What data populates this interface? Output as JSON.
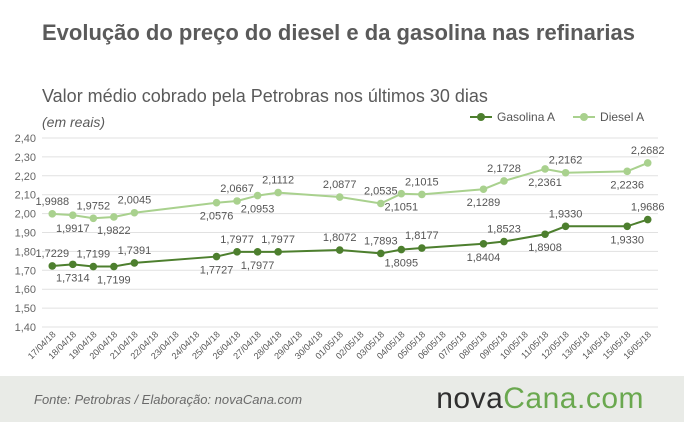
{
  "title": "Evolução do preço do diesel e da gasolina nas refinarias",
  "subtitle": "Valor médio cobrado pela Petrobras nos últimos 30 dias",
  "unit_note": "(em reais)",
  "footer": {
    "source": "Fonte:  Petrobras  / Elaboração:  novaCana.com",
    "brand_part1": "nova",
    "brand_part2": "Cana.com"
  },
  "colors": {
    "gasolina": "#4d7f2e",
    "diesel": "#a9d18e",
    "grid": "#e1e1e1",
    "text": "#555555"
  },
  "chart_data": {
    "type": "line",
    "title": "Evolução do preço do diesel e da gasolina nas refinarias",
    "subtitle": "Valor médio cobrado pela Petrobras nos últimos 30 dias",
    "ylabel": "(em reais)",
    "ylim": [
      1.4,
      2.4
    ],
    "yticks": [
      "1,40",
      "1,50",
      "1,60",
      "1,70",
      "1,80",
      "1,90",
      "2,00",
      "2,10",
      "2,20",
      "2,30",
      "2,40"
    ],
    "grid": true,
    "legend_position": "top-right",
    "categories": [
      "17/04/18",
      "18/04/18",
      "19/04/18",
      "20/04/18",
      "21/04/18",
      "22/04/18",
      "23/04/18",
      "24/04/18",
      "25/04/18",
      "26/04/18",
      "27/04/18",
      "28/04/18",
      "29/04/18",
      "30/04/18",
      "01/05/18",
      "02/05/18",
      "03/05/18",
      "04/05/18",
      "05/05/18",
      "06/05/18",
      "07/05/18",
      "08/05/18",
      "09/05/18",
      "10/05/18",
      "11/05/18",
      "12/05/18",
      "13/05/18",
      "14/05/18",
      "15/05/18",
      "16/05/18"
    ],
    "series": [
      {
        "name": "Gasolina A",
        "color": "#4d7f2e",
        "points": [
          [
            0,
            1.7229
          ],
          [
            1,
            1.7314
          ],
          [
            2,
            1.7199
          ],
          [
            3,
            1.7199
          ],
          [
            4,
            1.7391
          ],
          [
            8,
            1.7727
          ],
          [
            9,
            1.7977
          ],
          [
            10,
            1.7977
          ],
          [
            11,
            1.7977
          ],
          [
            14,
            1.8072
          ],
          [
            16,
            1.7893
          ],
          [
            17,
            1.8095
          ],
          [
            18,
            1.8177
          ],
          [
            21,
            1.8404
          ],
          [
            22,
            1.8523
          ],
          [
            24,
            1.8908
          ],
          [
            25,
            1.933
          ],
          [
            28,
            1.933
          ],
          [
            29,
            1.9686
          ]
        ],
        "labels": [
          "1,7229",
          "1,7314",
          "1,7199",
          "1,7199",
          "1,7391",
          "1,7727",
          "1,7977",
          "1,7977",
          "1,7977",
          "1,8072",
          "1,7893",
          "1,8095",
          "1,8177",
          "1,8404",
          "1,8523",
          "1,8908",
          "1,9330",
          "1,9330",
          "1,9686"
        ],
        "label_pos": [
          "above",
          "below",
          "above",
          "below",
          "above",
          "below",
          "above",
          "below",
          "above",
          "above",
          "above",
          "below",
          "above",
          "below",
          "above",
          "below",
          "above",
          "below",
          "above"
        ]
      },
      {
        "name": "Diesel A",
        "color": "#a9d18e",
        "points": [
          [
            0,
            1.9988
          ],
          [
            1,
            1.9917
          ],
          [
            2,
            1.9752
          ],
          [
            3,
            1.9822
          ],
          [
            4,
            2.0045
          ],
          [
            8,
            2.0576
          ],
          [
            9,
            2.0667
          ],
          [
            10,
            2.0953
          ],
          [
            11,
            2.1112
          ],
          [
            14,
            2.0877
          ],
          [
            16,
            2.0535
          ],
          [
            17,
            2.1051
          ],
          [
            18,
            2.1015
          ],
          [
            21,
            2.1289
          ],
          [
            22,
            2.1728
          ],
          [
            24,
            2.2361
          ],
          [
            25,
            2.2162
          ],
          [
            28,
            2.2236
          ],
          [
            29,
            2.2682
          ]
        ],
        "labels": [
          "1,9988",
          "1,9917",
          "1,9752",
          "1,9822",
          "2,0045",
          "2,0576",
          "2,0667",
          "2,0953",
          "2,1112",
          "2,0877",
          "2,0535",
          "2,1051",
          "2,1015",
          "2,1289",
          "2,1728",
          "2,2361",
          "2,2162",
          "2,2236",
          "2,2682"
        ],
        "label_pos": [
          "above",
          "below",
          "above",
          "below",
          "above",
          "below",
          "above",
          "below",
          "above",
          "above",
          "above",
          "below",
          "above",
          "below",
          "above",
          "below",
          "above",
          "below",
          "above"
        ]
      }
    ]
  }
}
